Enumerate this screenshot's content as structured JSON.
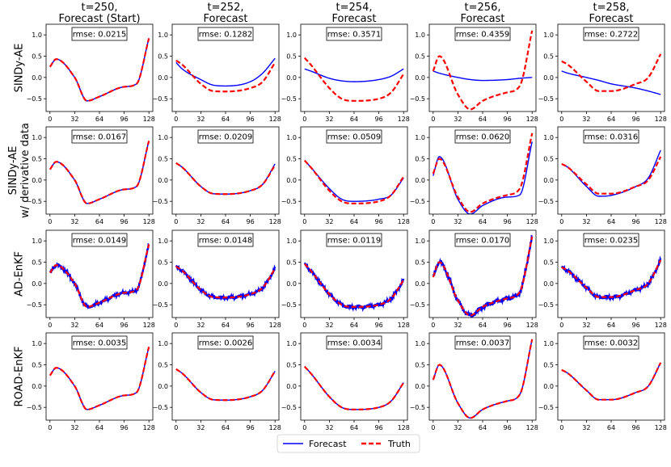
{
  "chart_data": {
    "type": "line",
    "layout": "grid",
    "column_titles": [
      [
        "t=250,",
        "Forecast (Start)"
      ],
      [
        "t=252,",
        "Forecast"
      ],
      [
        "t=254,",
        "Forecast"
      ],
      [
        "t=256,",
        "Forecast"
      ],
      [
        "t=258,",
        "Forecast"
      ]
    ],
    "row_labels": [
      [
        "SINDy-AE"
      ],
      [
        "SINDy-AE",
        "w/ derivative data"
      ],
      [
        "AD-EnKF"
      ],
      [
        "ROAD-EnKF"
      ]
    ],
    "xticks": [
      0,
      32,
      64,
      96,
      128
    ],
    "yticks": [
      -0.5,
      0.0,
      0.5,
      1.0
    ],
    "ytick_labels": [
      "−0.5",
      "0.0",
      "0.5",
      "1.0"
    ],
    "xlim": [
      -5,
      133
    ],
    "ylim": [
      -0.8,
      1.25
    ],
    "legend": {
      "entries": [
        "Forecast",
        "Truth"
      ],
      "colors": [
        "#0000ff",
        "#ff0000"
      ],
      "placement": "bottom-center"
    },
    "x_knots": [
      0,
      8,
      32,
      48,
      64,
      96,
      112,
      128
    ],
    "truth": [
      [
        0.25,
        0.43,
        0.0,
        -0.55,
        -0.45,
        -0.22,
        -0.15,
        0.92
      ],
      [
        0.4,
        0.3,
        -0.15,
        -0.32,
        -0.33,
        -0.25,
        -0.1,
        0.35
      ],
      [
        0.46,
        0.3,
        -0.25,
        -0.5,
        -0.55,
        -0.5,
        -0.35,
        0.08
      ],
      [
        0.15,
        0.5,
        -0.4,
        -0.75,
        -0.55,
        -0.35,
        -0.2,
        1.1
      ],
      [
        0.38,
        0.3,
        -0.1,
        -0.32,
        -0.32,
        -0.15,
        0.0,
        0.55
      ]
    ],
    "panels": [
      [
        {
          "rmse": "rmse: 0.0215",
          "noise": 0,
          "forecast": [
            0.25,
            0.43,
            0.0,
            -0.55,
            -0.45,
            -0.22,
            -0.15,
            0.92
          ]
        },
        {
          "rmse": "rmse: 0.1282",
          "noise": 0,
          "forecast": [
            0.35,
            0.2,
            -0.05,
            -0.18,
            -0.2,
            -0.1,
            0.1,
            0.45
          ]
        },
        {
          "rmse": "rmse: 0.3571",
          "noise": 0,
          "forecast": [
            0.2,
            0.15,
            -0.02,
            -0.08,
            -0.1,
            -0.05,
            0.03,
            0.2
          ]
        },
        {
          "rmse": "rmse: 0.4359",
          "noise": 0,
          "forecast": [
            0.15,
            0.1,
            0.0,
            -0.05,
            -0.07,
            -0.05,
            -0.02,
            0.0
          ]
        },
        {
          "rmse": "rmse: 0.2722",
          "noise": 0,
          "forecast": [
            0.15,
            0.1,
            0.0,
            -0.07,
            -0.15,
            -0.25,
            -0.32,
            -0.4
          ]
        }
      ],
      [
        {
          "rmse": "rmse: 0.0167",
          "noise": 0,
          "forecast": [
            0.25,
            0.43,
            0.0,
            -0.55,
            -0.45,
            -0.22,
            -0.15,
            0.92
          ]
        },
        {
          "rmse": "rmse: 0.0209",
          "noise": 0,
          "forecast": [
            0.4,
            0.3,
            -0.15,
            -0.32,
            -0.33,
            -0.25,
            -0.1,
            0.38
          ]
        },
        {
          "rmse": "rmse: 0.0509",
          "noise": 0,
          "forecast": [
            0.46,
            0.3,
            -0.2,
            -0.45,
            -0.5,
            -0.45,
            -0.35,
            0.05
          ]
        },
        {
          "rmse": "rmse: 0.0620",
          "noise": 0,
          "forecast": [
            0.1,
            0.55,
            -0.45,
            -0.8,
            -0.6,
            -0.4,
            -0.35,
            0.9
          ]
        },
        {
          "rmse": "rmse: 0.0316",
          "noise": 0,
          "forecast": [
            0.38,
            0.3,
            -0.15,
            -0.38,
            -0.36,
            -0.15,
            0.05,
            0.7
          ]
        }
      ],
      [
        {
          "rmse": "rmse: 0.0149",
          "noise": 0.035,
          "forecast": [
            0.25,
            0.43,
            0.0,
            -0.55,
            -0.45,
            -0.22,
            -0.15,
            0.92
          ]
        },
        {
          "rmse": "rmse: 0.0148",
          "noise": 0.035,
          "forecast": [
            0.4,
            0.3,
            -0.15,
            -0.32,
            -0.33,
            -0.25,
            -0.1,
            0.35
          ]
        },
        {
          "rmse": "rmse: 0.0119",
          "noise": 0.04,
          "forecast": [
            0.46,
            0.3,
            -0.25,
            -0.5,
            -0.55,
            -0.5,
            -0.35,
            0.08
          ]
        },
        {
          "rmse": "rmse: 0.0170",
          "noise": 0.05,
          "forecast": [
            0.15,
            0.5,
            -0.4,
            -0.75,
            -0.55,
            -0.35,
            -0.2,
            1.1
          ]
        },
        {
          "rmse": "rmse: 0.0235",
          "noise": 0.04,
          "forecast": [
            0.38,
            0.3,
            -0.1,
            -0.32,
            -0.32,
            -0.15,
            0.0,
            0.55
          ]
        }
      ],
      [
        {
          "rmse": "rmse: 0.0035",
          "noise": 0,
          "forecast": [
            0.25,
            0.43,
            0.0,
            -0.55,
            -0.45,
            -0.22,
            -0.15,
            0.92
          ]
        },
        {
          "rmse": "rmse: 0.0026",
          "noise": 0,
          "forecast": [
            0.4,
            0.3,
            -0.15,
            -0.32,
            -0.33,
            -0.25,
            -0.1,
            0.35
          ]
        },
        {
          "rmse": "rmse: 0.0034",
          "noise": 0,
          "forecast": [
            0.46,
            0.3,
            -0.25,
            -0.5,
            -0.55,
            -0.5,
            -0.35,
            0.08
          ]
        },
        {
          "rmse": "rmse: 0.0037",
          "noise": 0,
          "forecast": [
            0.15,
            0.5,
            -0.4,
            -0.75,
            -0.55,
            -0.35,
            -0.2,
            1.1
          ]
        },
        {
          "rmse": "rmse: 0.0032",
          "noise": 0,
          "forecast": [
            0.38,
            0.3,
            -0.1,
            -0.32,
            -0.32,
            -0.15,
            0.0,
            0.55
          ]
        }
      ]
    ]
  }
}
